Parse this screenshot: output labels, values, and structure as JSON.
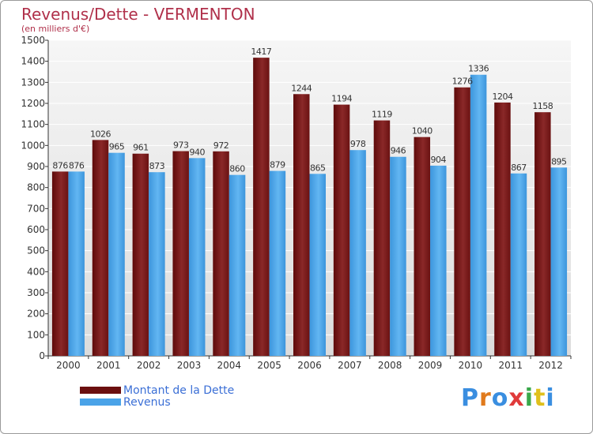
{
  "title": "Revenus/Dette - VERMENTON",
  "subtitle": "(en milliers d'€)",
  "chart_data": {
    "type": "bar",
    "categories": [
      "2000",
      "2001",
      "2002",
      "2003",
      "2004",
      "2005",
      "2006",
      "2007",
      "2008",
      "2009",
      "2010",
      "2011",
      "2012"
    ],
    "series": [
      {
        "name": "Montant de la Dette",
        "color": "#7a1a1a",
        "values": [
          876,
          1026,
          961,
          973,
          972,
          1417,
          1244,
          1194,
          1119,
          1040,
          1276,
          1204,
          1158
        ]
      },
      {
        "name": "Revenus",
        "color": "#4aa3e8",
        "values": [
          876,
          965,
          873,
          940,
          860,
          879,
          865,
          978,
          946,
          904,
          1336,
          867,
          895
        ]
      }
    ],
    "ylim": [
      0,
      1500
    ],
    "yticks": [
      0,
      100,
      200,
      300,
      400,
      500,
      600,
      700,
      800,
      900,
      1000,
      1100,
      1200,
      1300,
      1400,
      1500
    ],
    "grid": true,
    "legend_position": "bottom-left"
  },
  "legend": [
    {
      "label": "Montant de la Dette",
      "color": "#6b0f0f"
    },
    {
      "label": "Revenus",
      "color": "#4aa3e8"
    }
  ],
  "logo": {
    "letters": [
      "P",
      "r",
      "o",
      "x",
      "i",
      "t",
      "i"
    ],
    "colors": [
      "#3a8ee0",
      "#e07a1c",
      "#3a8ee0",
      "#e03a3a",
      "#3aa84a",
      "#e0c01c",
      "#3a8ee0"
    ]
  }
}
